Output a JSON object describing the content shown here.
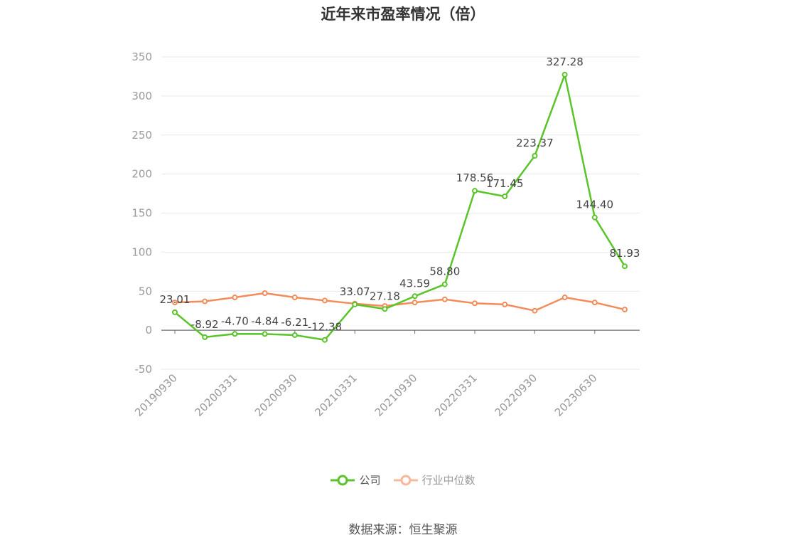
{
  "title": "近年来市盈率情况（倍）",
  "source": "数据来源：恒生聚源",
  "colors": {
    "company": "#5ac42a",
    "industry": "#f28c5a",
    "grid": "#e6e9f0",
    "axis": "#999999",
    "label": "#444444"
  },
  "legend": {
    "company": "公司",
    "industry": "行业中位数"
  },
  "chart_data": {
    "type": "line",
    "title": "近年来市盈率情况（倍）",
    "ylim": [
      -50,
      350
    ],
    "yticks": [
      -50,
      0,
      50,
      100,
      150,
      200,
      250,
      300,
      350
    ],
    "grid": true,
    "legend_position": "bottom",
    "x": [
      "20190930",
      "20191231",
      "20200331",
      "20200630",
      "20200930",
      "20201231",
      "20210331",
      "20210630",
      "20210930",
      "20211231",
      "20220331",
      "20220630",
      "20220930",
      "20221231",
      "20230630",
      "20230930"
    ],
    "xtick_labels": [
      "20190930",
      "20200331",
      "20200930",
      "20210331",
      "20210930",
      "20220331",
      "20220930",
      "20230630"
    ],
    "series": [
      {
        "name": "公司",
        "values": [
          23.01,
          -8.92,
          -4.7,
          -4.84,
          -6.21,
          -12.38,
          33.07,
          27.18,
          43.59,
          58.8,
          178.56,
          171.45,
          223.37,
          327.28,
          144.4,
          81.93
        ],
        "labels": [
          "23.01",
          "-8.92",
          "-4.70",
          "-4.84",
          "-6.21",
          "-12.38",
          "33.07",
          "27.18",
          "43.59",
          "58.80",
          "178.56",
          "171.45",
          "223.37",
          "327.28",
          "144.40",
          "81.93"
        ]
      },
      {
        "name": "行业中位数",
        "values": [
          35.5,
          37.0,
          42.0,
          47.5,
          42.0,
          38.0,
          34.0,
          31.0,
          35.5,
          39.5,
          34.5,
          33.0,
          25.0,
          42.0,
          35.5,
          26.5
        ]
      }
    ]
  }
}
